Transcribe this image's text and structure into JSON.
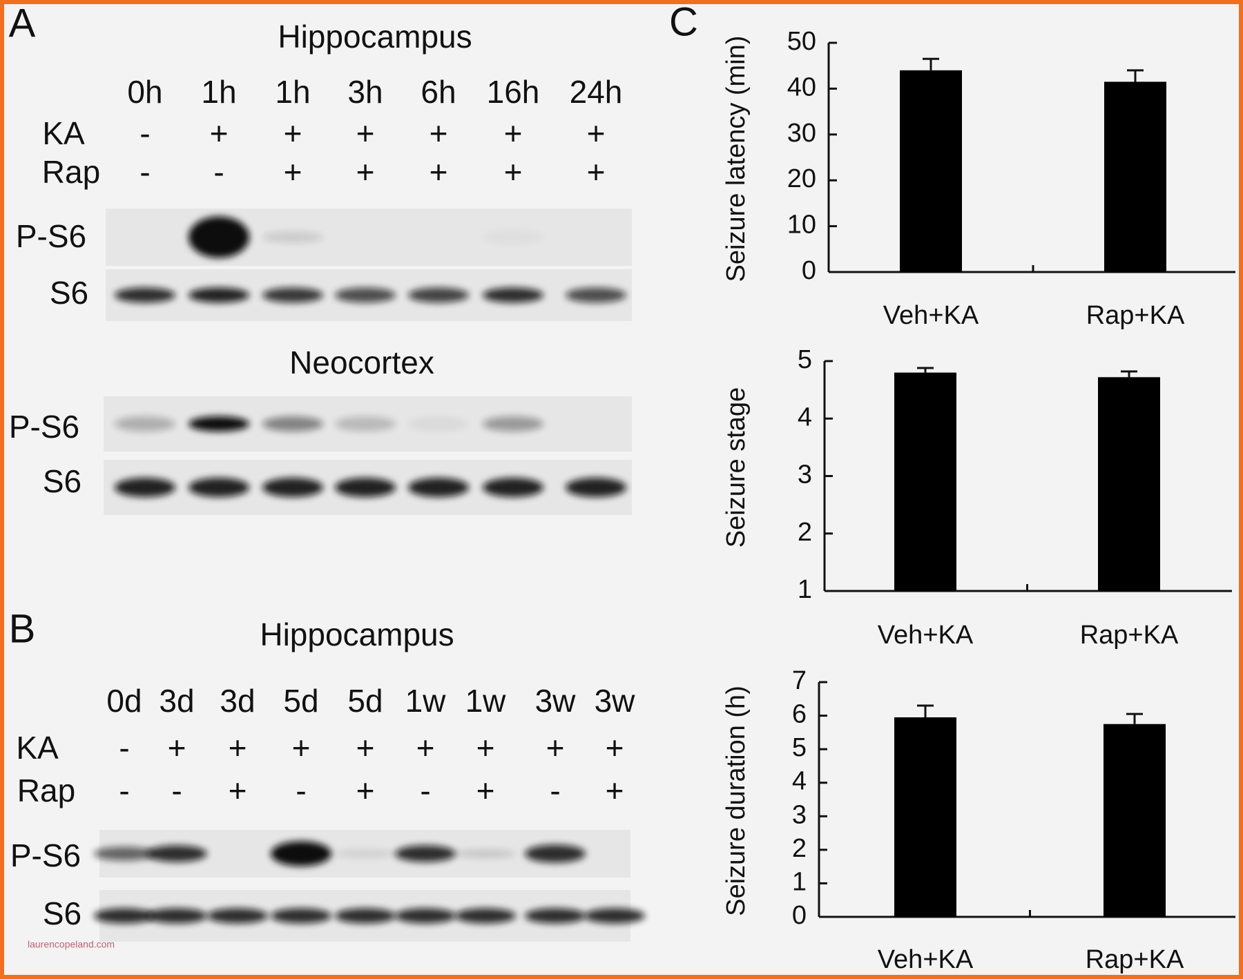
{
  "panel_a": {
    "label": "A",
    "sections": [
      {
        "title": "Hippocampus",
        "lanes": [
          "0h",
          "1h",
          "1h",
          "3h",
          "6h",
          "16h",
          "24h"
        ],
        "rows": [
          {
            "label": "KA",
            "values": [
              "-",
              "+",
              "+",
              "+",
              "+",
              "+",
              "+"
            ]
          },
          {
            "label": "Rap",
            "values": [
              "-",
              "-",
              "+",
              "+",
              "+",
              "+",
              "+"
            ]
          }
        ],
        "blots": [
          "P-S6",
          "S6"
        ]
      },
      {
        "title": "Neocortex",
        "blots": [
          "P-S6",
          "S6"
        ]
      }
    ]
  },
  "panel_b": {
    "label": "B",
    "title": "Hippocampus",
    "lanes": [
      "0d",
      "3d",
      "3d",
      "5d",
      "5d",
      "1w",
      "1w",
      "3w",
      "3w"
    ],
    "rows": [
      {
        "label": "KA",
        "values": [
          "-",
          "+",
          "+",
          "+",
          "+",
          "+",
          "+",
          "+",
          "+"
        ]
      },
      {
        "label": "Rap",
        "values": [
          "-",
          "-",
          "+",
          "-",
          "+",
          "-",
          "+",
          "-",
          "+"
        ]
      }
    ],
    "blots": [
      "P-S6",
      "S6"
    ]
  },
  "panel_c": {
    "label": "C"
  },
  "watermark": "laurencopeland.com",
  "chart_data": [
    {
      "type": "bar",
      "ylabel": "Seizure latency (min)",
      "categories": [
        "Veh+KA",
        "Rap+KA"
      ],
      "values": [
        44,
        41.5
      ],
      "errors": [
        2.5,
        2.5
      ],
      "color": "#000000",
      "ylim": [
        0,
        50
      ],
      "yticks": [
        0,
        10,
        20,
        30,
        40,
        50
      ]
    },
    {
      "type": "bar",
      "ylabel": "Seizure stage",
      "categories": [
        "Veh+KA",
        "Rap+KA"
      ],
      "values": [
        4.8,
        4.72
      ],
      "errors": [
        0.08,
        0.1
      ],
      "color": "#000000",
      "ylim": [
        1,
        5
      ],
      "yticks": [
        1,
        2,
        3,
        4,
        5
      ]
    },
    {
      "type": "bar",
      "ylabel": "Seizure duration (h)",
      "categories": [
        "Veh+KA",
        "Rap+KA"
      ],
      "values": [
        5.95,
        5.75
      ],
      "errors": [
        0.35,
        0.3
      ],
      "color": "#000000",
      "ylim": [
        0,
        7
      ],
      "yticks": [
        0,
        1,
        2,
        3,
        4,
        5,
        6,
        7
      ]
    }
  ]
}
